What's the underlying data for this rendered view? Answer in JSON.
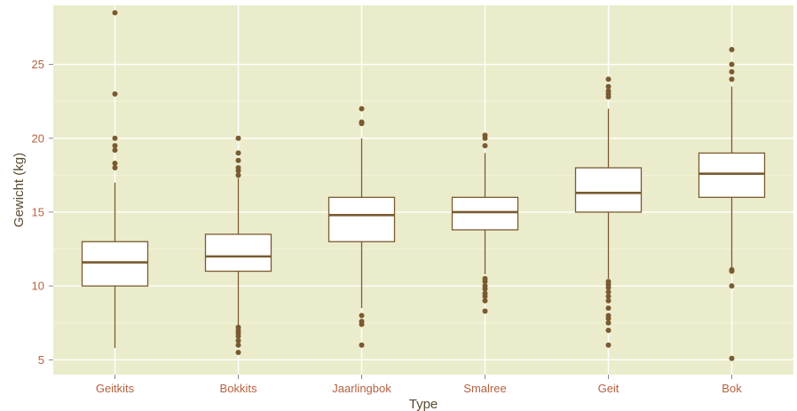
{
  "chart_data": {
    "type": "boxplot",
    "title": "",
    "xlabel": "Type",
    "ylabel": "Gewicht (kg)",
    "ylim": [
      4.0,
      29.0
    ],
    "y_ticks": [
      5,
      10,
      15,
      20,
      25
    ],
    "grid": true,
    "colors": {
      "panel": "#ebeccb",
      "grid_major": "#ffffff",
      "grid_minor": "#f3f3dc",
      "box_fill": "#ffffff",
      "box_stroke": "#7a5a30",
      "median": "#7a5a30",
      "outlier": "#7a5a30",
      "tick_label": "#b5603f",
      "axis_title": "#5a4a2f"
    },
    "categories": [
      "Geitkits",
      "Bokkits",
      "Jaarlingbok",
      "Smalree",
      "Geit",
      "Bok"
    ],
    "boxes": [
      {
        "category": "Geitkits",
        "whisker_low": 5.8,
        "q1": 10.0,
        "median": 11.6,
        "q3": 13.0,
        "whisker_high": 17.0,
        "outliers": [
          18.0,
          18.3,
          19.2,
          19.5,
          20.0,
          23.0,
          28.5
        ]
      },
      {
        "category": "Bokkits",
        "whisker_low": 7.3,
        "q1": 11.0,
        "median": 12.0,
        "q3": 13.5,
        "whisker_high": 17.3,
        "outliers": [
          5.5,
          6.0,
          6.3,
          6.6,
          6.8,
          7.0,
          7.2,
          17.5,
          17.8,
          18.0,
          18.5,
          19.0,
          20.0
        ]
      },
      {
        "category": "Jaarlingbok",
        "whisker_low": 8.5,
        "q1": 13.0,
        "median": 14.8,
        "q3": 16.0,
        "whisker_high": 20.0,
        "outliers": [
          6.0,
          7.4,
          7.6,
          8.0,
          21.0,
          21.1,
          22.0
        ]
      },
      {
        "category": "Smalree",
        "whisker_low": 10.8,
        "q1": 13.8,
        "median": 15.0,
        "q3": 16.0,
        "whisker_high": 19.0,
        "outliers": [
          8.3,
          9.0,
          9.3,
          9.5,
          9.8,
          10.0,
          10.3,
          10.5,
          19.5,
          20.0,
          20.2
        ]
      },
      {
        "category": "Geit",
        "whisker_low": 10.5,
        "q1": 15.0,
        "median": 16.3,
        "q3": 18.0,
        "whisker_high": 22.0,
        "outliers": [
          6.0,
          7.0,
          7.5,
          7.8,
          8.0,
          8.5,
          9.0,
          9.3,
          9.6,
          9.9,
          10.1,
          10.3,
          22.8,
          23.0,
          23.2,
          23.5,
          24.0
        ]
      },
      {
        "category": "Bok",
        "whisker_low": 11.0,
        "q1": 16.0,
        "median": 17.6,
        "q3": 19.0,
        "whisker_high": 23.5,
        "outliers": [
          5.1,
          10.0,
          11.0,
          11.1,
          24.0,
          24.5,
          25.0,
          26.0
        ]
      }
    ]
  }
}
